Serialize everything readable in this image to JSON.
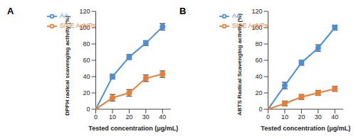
{
  "chart_data": [
    {
      "type": "line",
      "title": "A",
      "x_label": "Tested concentration (μg/mL)",
      "y_label": "DPPH radical scavenging activity (%)",
      "x": [
        0,
        10,
        20,
        30,
        40
      ],
      "xlim": [
        0,
        45
      ],
      "xticks": [
        0,
        10,
        20,
        30,
        40
      ],
      "ylim": [
        0,
        120
      ],
      "yticks": [
        0,
        20,
        40,
        60,
        80,
        100,
        120
      ],
      "grid": false,
      "legend": "upper left",
      "marker": "circle",
      "series": [
        {
          "name": "AA",
          "color": "#4a90d9",
          "values": [
            0,
            40,
            64,
            81,
            101
          ],
          "errors": [
            0,
            3,
            3,
            3,
            4
          ]
        },
        {
          "name": "SISE AgNPs",
          "color": "#ed7d31",
          "values": [
            0,
            14,
            20,
            38,
            43
          ],
          "errors": [
            0,
            4,
            4,
            4,
            4
          ]
        }
      ]
    },
    {
      "type": "line",
      "title": "B",
      "x_label": "Tested concentration (μg/mL)",
      "y_label": "ABTS Radical Scavenging activity (%)",
      "x": [
        0,
        10,
        20,
        30,
        40
      ],
      "xlim": [
        0,
        45
      ],
      "xticks": [
        0,
        10,
        20,
        30,
        40
      ],
      "ylim": [
        0,
        120
      ],
      "yticks": [
        0,
        20,
        40,
        60,
        80,
        100,
        120
      ],
      "grid": false,
      "legend": "upper left",
      "marker": "circle",
      "series": [
        {
          "name": "AA",
          "color": "#4a90d9",
          "values": [
            0,
            29,
            57,
            75,
            100
          ],
          "errors": [
            0,
            4,
            3,
            4,
            3
          ]
        },
        {
          "name": "SISE AgNPs",
          "color": "#ed7d31",
          "values": [
            0,
            7,
            15,
            20,
            25
          ],
          "errors": [
            0,
            3,
            3,
            3,
            3
          ]
        }
      ]
    }
  ]
}
